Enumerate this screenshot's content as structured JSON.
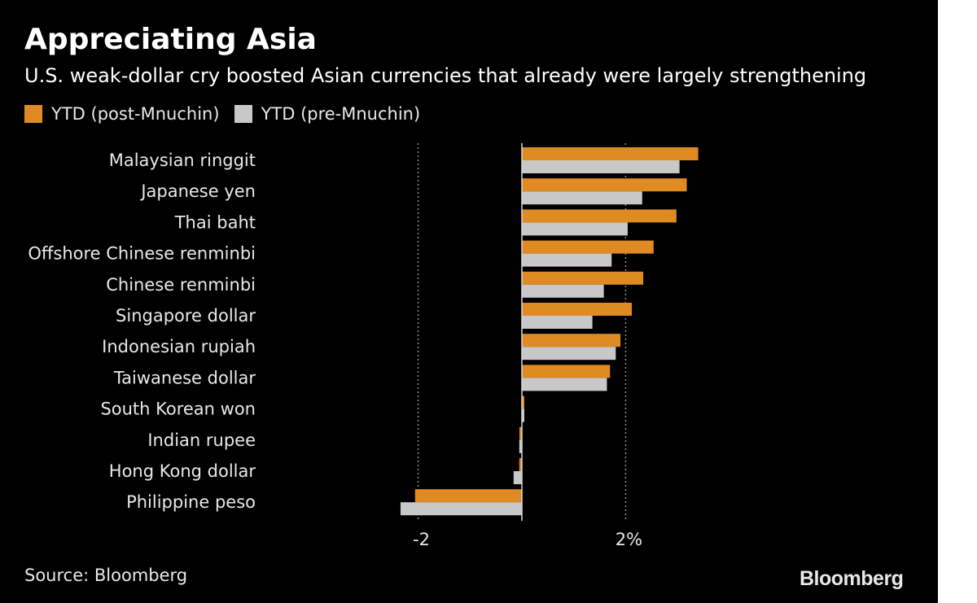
{
  "title": "Appreciating Asia",
  "subtitle": "U.S. weak-dollar cry boosted Asian currencies that already were largely strengthening",
  "source": "Source: Bloomberg",
  "logo": "Bloomberg",
  "colors": {
    "background": "#000000",
    "post": "#e08a24",
    "pre": "#c8c8c8",
    "text": "#e8e8e8"
  },
  "chart_data": {
    "type": "bar",
    "orientation": "horizontal",
    "categories": [
      "Malaysian ringgit",
      "Japanese yen",
      "Thai baht",
      "Offshore Chinese renminbi",
      "Chinese renminbi",
      "Singapore dollar",
      "Indonesian rupiah",
      "Taiwanese dollar",
      "South Korean won",
      "Indian rupee",
      "Hong Kong dollar",
      "Philippine peso"
    ],
    "series": [
      {
        "name": "YTD (post-Mnuchin)",
        "color": "#e08a24",
        "values": [
          3.4,
          3.18,
          2.98,
          2.54,
          2.34,
          2.12,
          1.9,
          1.7,
          0.03,
          -0.04,
          -0.05,
          -2.06
        ]
      },
      {
        "name": "YTD (pre-Mnuchin)",
        "color": "#c8c8c8",
        "values": [
          3.04,
          2.32,
          2.04,
          1.73,
          1.58,
          1.36,
          1.81,
          1.64,
          0.03,
          -0.05,
          -0.16,
          -2.34
        ]
      }
    ],
    "xlim": [
      -2.34,
      3.4
    ],
    "xticks": [
      {
        "value": -2,
        "label": "-2"
      },
      {
        "value": 2,
        "label": "2%"
      }
    ],
    "grid": "vertical dotted at ticks",
    "legend": "top-left"
  }
}
